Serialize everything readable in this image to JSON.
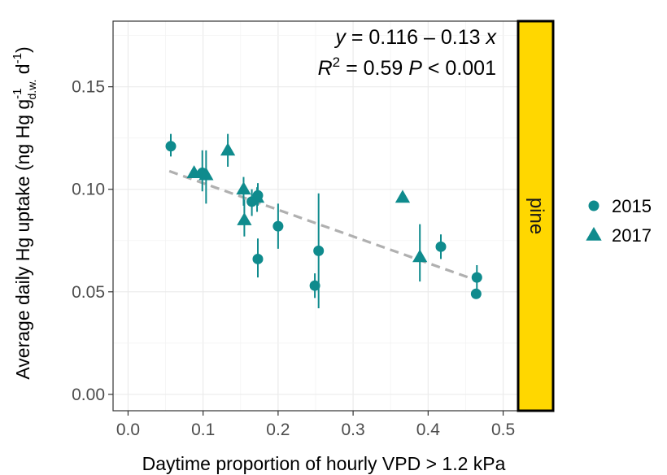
{
  "chart_data": {
    "type": "scatter",
    "facet_label": "pine",
    "xlabel": "Daytime proportion of hourly VPD > 1.2 kPa",
    "ylabel": {
      "main": "Average daily Hg uptake  (ng Hg g",
      "sup": "-1",
      "sub": "d.w.",
      "tail": " d",
      "tail_sup": "-1",
      "close": ")"
    },
    "xlim": [
      -0.02,
      0.52
    ],
    "ylim": [
      -0.008,
      0.182
    ],
    "x_ticks": [
      0.0,
      0.1,
      0.2,
      0.3,
      0.4,
      0.5
    ],
    "x_tick_labels": [
      "0.0",
      "0.1",
      "0.2",
      "0.3",
      "0.4",
      "0.5"
    ],
    "y_ticks": [
      0.0,
      0.05,
      0.1,
      0.15
    ],
    "y_tick_labels": [
      "0.00",
      "0.05",
      "0.10",
      "0.15"
    ],
    "grid": true,
    "legend_position": "right",
    "color": "#0f8b8d",
    "fit": {
      "intercept": 0.116,
      "slope": -0.13,
      "x_range": [
        0.055,
        0.465
      ],
      "color": "#b0b0b0",
      "style": "dashed",
      "equation": {
        "y": "y",
        "eq": " = 0.116 – 0.13 ",
        "x": "x"
      },
      "stats": {
        "r": "R",
        "r_sup": "2",
        "r_val": " = 0.59   ",
        "p": "P",
        "p_val": " < 0.001"
      }
    },
    "series": [
      {
        "name": "2015",
        "marker": "circle",
        "points": [
          {
            "x": 0.057,
            "y": 0.121,
            "lo": 0.116,
            "hi": 0.127
          },
          {
            "x": 0.099,
            "y": 0.108,
            "lo": 0.099,
            "hi": 0.119
          },
          {
            "x": 0.165,
            "y": 0.094,
            "lo": 0.087,
            "hi": 0.1
          },
          {
            "x": 0.173,
            "y": 0.097,
            "lo": 0.092,
            "hi": 0.103
          },
          {
            "x": 0.173,
            "y": 0.066,
            "lo": 0.057,
            "hi": 0.076
          },
          {
            "x": 0.2,
            "y": 0.082,
            "lo": 0.071,
            "hi": 0.093
          },
          {
            "x": 0.249,
            "y": 0.053,
            "lo": 0.047,
            "hi": 0.059
          },
          {
            "x": 0.254,
            "y": 0.07,
            "lo": 0.042,
            "hi": 0.098
          },
          {
            "x": 0.417,
            "y": 0.072,
            "lo": 0.066,
            "hi": 0.078
          },
          {
            "x": 0.465,
            "y": 0.057,
            "lo": 0.051,
            "hi": 0.063
          },
          {
            "x": 0.464,
            "y": 0.049,
            "lo": 0.049,
            "hi": 0.049
          }
        ]
      },
      {
        "name": "2017",
        "marker": "triangle",
        "points": [
          {
            "x": 0.088,
            "y": 0.108,
            "lo": 0.108,
            "hi": 0.108
          },
          {
            "x": 0.104,
            "y": 0.107,
            "lo": 0.093,
            "hi": 0.119
          },
          {
            "x": 0.133,
            "y": 0.119,
            "lo": 0.111,
            "hi": 0.127
          },
          {
            "x": 0.154,
            "y": 0.1,
            "lo": 0.092,
            "hi": 0.106
          },
          {
            "x": 0.155,
            "y": 0.085,
            "lo": 0.077,
            "hi": 0.095
          },
          {
            "x": 0.172,
            "y": 0.096,
            "lo": 0.089,
            "hi": 0.101
          },
          {
            "x": 0.366,
            "y": 0.096,
            "lo": 0.096,
            "hi": 0.096
          },
          {
            "x": 0.389,
            "y": 0.067,
            "lo": 0.055,
            "hi": 0.083
          }
        ]
      }
    ]
  }
}
